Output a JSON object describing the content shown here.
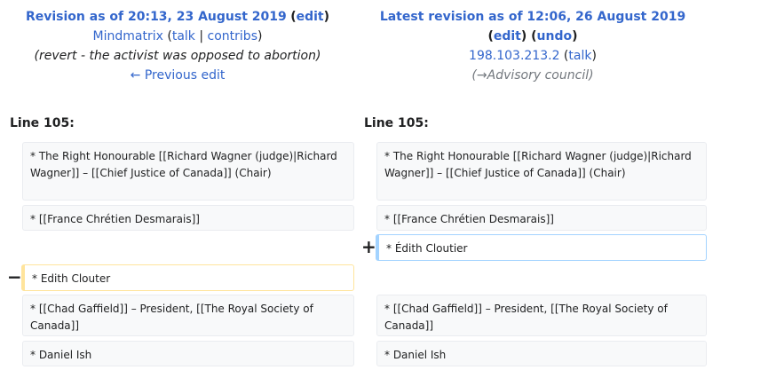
{
  "left_header": {
    "title": "Revision as of 20:13, 23 August 2019",
    "edit_link": "edit",
    "user": "Mindmatrix",
    "talk": "talk",
    "contribs": "contribs",
    "summary": "(revert - the activist was opposed to abortion)",
    "prev_edit": "← Previous edit"
  },
  "right_header": {
    "title": "Latest revision as of 12:06, 26 August 2019",
    "edit_link": "edit",
    "undo_link": "undo",
    "user": "198.103.213.2",
    "talk": "talk",
    "summary_arrow": "→",
    "summary_section": "Advisory council"
  },
  "line_label_left": "Line 105:",
  "line_label_right": "Line 105:",
  "diff": {
    "row1_left": "* The Right Honourable [[Richard Wagner (judge)|Richard Wagner]] – [[Chief Justice of Canada]] (Chair)",
    "row1_right": "* The Right Honourable [[Richard Wagner (judge)|Richard Wagner]] – [[Chief Justice of Canada]] (Chair)",
    "row2_left": "* [[France Chrétien Desmarais]]",
    "row2_right": "* [[France Chrétien Desmarais]]",
    "added_line": "* Édith Cloutier",
    "removed_line": "* Edith Clouter",
    "row5_left": "* [[Chad Gaffield]] – President, [[The Royal Society of Canada]]",
    "row5_right": "* [[Chad Gaffield]] – President, [[The Royal Society of Canada]]",
    "row6_left": "* Daniel Ish",
    "row6_right": "* Daniel Ish",
    "plus_marker": "+",
    "minus_marker": "−"
  }
}
